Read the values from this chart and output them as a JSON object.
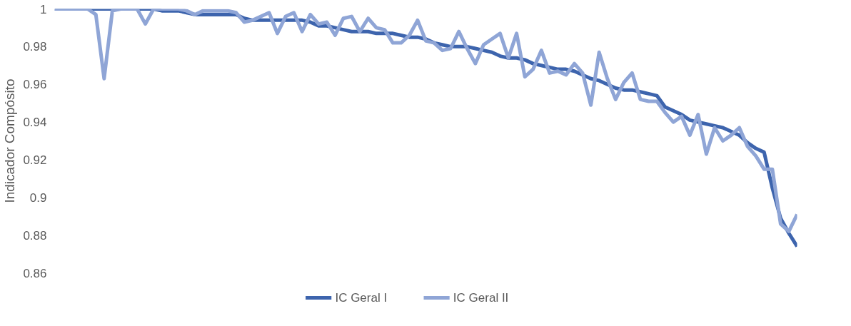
{
  "chart_data": {
    "type": "line",
    "ylabel": "Indicador Compósito",
    "categories": [
      null,
      null,
      null,
      null,
      null,
      null,
      null,
      null,
      null,
      null,
      null,
      null,
      null,
      null,
      null,
      null,
      null,
      null,
      null,
      null,
      null,
      null,
      null,
      null,
      null,
      null,
      null,
      null,
      null,
      null,
      null,
      null,
      null,
      null,
      null,
      null,
      null,
      null,
      null,
      null,
      null,
      null,
      null,
      null,
      null,
      null,
      null,
      null,
      null,
      null,
      null,
      null,
      null,
      null,
      null,
      null,
      null,
      null,
      null,
      null,
      null,
      null,
      null,
      null,
      null,
      null,
      null,
      null,
      null,
      null,
      null,
      null,
      null,
      null,
      null,
      null,
      null,
      null,
      null,
      null,
      null,
      null,
      null,
      null,
      null,
      null,
      null,
      null,
      null,
      null,
      null
    ],
    "series": [
      {
        "name": "IC Geral I",
        "color": "#3d64ad",
        "values": [
          1,
          1,
          1,
          1,
          1,
          1,
          1,
          1,
          1,
          1,
          1,
          1,
          1,
          0.999,
          0.999,
          0.999,
          0.998,
          0.997,
          0.997,
          0.997,
          0.997,
          0.997,
          0.997,
          0.995,
          0.994,
          0.994,
          0.994,
          0.994,
          0.994,
          0.994,
          0.994,
          0.993,
          0.991,
          0.991,
          0.99,
          0.989,
          0.988,
          0.988,
          0.988,
          0.987,
          0.987,
          0.987,
          0.986,
          0.985,
          0.985,
          0.984,
          0.982,
          0.981,
          0.98,
          0.98,
          0.98,
          0.979,
          0.978,
          0.977,
          0.975,
          0.974,
          0.974,
          0.973,
          0.971,
          0.97,
          0.969,
          0.968,
          0.968,
          0.967,
          0.965,
          0.963,
          0.962,
          0.96,
          0.958,
          0.957,
          0.957,
          0.956,
          0.955,
          0.954,
          0.948,
          0.946,
          0.944,
          0.941,
          0.94,
          0.939,
          0.938,
          0.937,
          0.935,
          0.933,
          0.929,
          0.926,
          0.924,
          0.905,
          0.889,
          0.881,
          0.874
        ]
      },
      {
        "name": "IC Geral II",
        "color": "#8fa5d6",
        "values": [
          1,
          1,
          1,
          1,
          1,
          0.997,
          0.963,
          0.999,
          1,
          1,
          1,
          0.992,
          1,
          1,
          1,
          1,
          0.999,
          0.997,
          0.999,
          0.999,
          0.999,
          0.999,
          0.998,
          0.993,
          0.994,
          0.996,
          0.998,
          0.987,
          0.996,
          0.998,
          0.988,
          0.997,
          0.992,
          0.993,
          0.986,
          0.995,
          0.996,
          0.988,
          0.995,
          0.99,
          0.989,
          0.982,
          0.982,
          0.986,
          0.994,
          0.983,
          0.982,
          0.978,
          0.979,
          0.988,
          0.979,
          0.971,
          0.981,
          0.984,
          0.987,
          0.974,
          0.987,
          0.964,
          0.968,
          0.978,
          0.966,
          0.967,
          0.965,
          0.971,
          0.966,
          0.949,
          0.977,
          0.963,
          0.952,
          0.961,
          0.966,
          0.952,
          0.951,
          0.951,
          0.945,
          0.94,
          0.943,
          0.933,
          0.944,
          0.923,
          0.937,
          0.93,
          0.933,
          0.937,
          0.927,
          0.922,
          0.915,
          0.915,
          0.886,
          0.882,
          0.891
        ]
      }
    ],
    "ylim": [
      0.86,
      1
    ],
    "yticks": [
      {
        "value": 0.86,
        "label": "0.86"
      },
      {
        "value": 0.88,
        "label": "0.88"
      },
      {
        "value": 0.9,
        "label": "0.9"
      },
      {
        "value": 0.92,
        "label": "0.92"
      },
      {
        "value": 0.94,
        "label": "0.94"
      },
      {
        "value": 0.96,
        "label": "0.96"
      },
      {
        "value": 0.98,
        "label": "0.98"
      },
      {
        "value": 1,
        "label": "1"
      }
    ],
    "grid": false,
    "legend": "bottom",
    "marker": "none",
    "line_style": "solid"
  }
}
